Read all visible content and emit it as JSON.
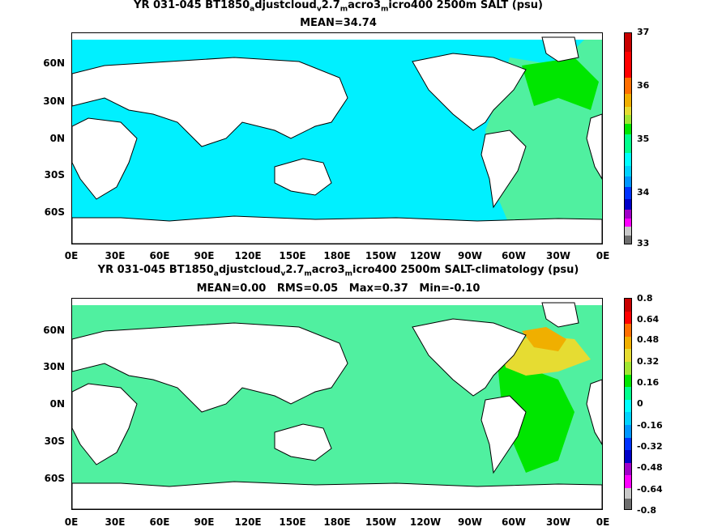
{
  "panels": [
    {
      "title_parts": [
        "YR 031-045 BT1850",
        "a",
        "djustcloud",
        "v",
        "2.7",
        "m",
        "acro3",
        "m",
        "icro400 2500m SALT (psu)"
      ],
      "subtitle": "MEAN=34.74",
      "colorbar_ticks": [
        "37",
        "36",
        "35",
        "34",
        "33"
      ]
    },
    {
      "title_parts": [
        "YR 031-045 BT1850",
        "a",
        "djustcloud",
        "v",
        "2.7",
        "m",
        "acro3",
        "m",
        "icro400 2500m SALT-climatology (psu)"
      ],
      "subtitle": "MEAN=0.00   RMS=0.05   Max=0.37   Min=-0.10",
      "colorbar_ticks": [
        "0.8",
        "0.64",
        "0.48",
        "0.32",
        "0.16",
        "0",
        "-0.16",
        "-0.32",
        "-0.48",
        "-0.64",
        "-0.8"
      ]
    }
  ],
  "lat_labels": [
    "60N",
    "30N",
    "0N",
    "30S",
    "60S"
  ],
  "lon_labels": [
    "0E",
    "30E",
    "60E",
    "90E",
    "120E",
    "150E",
    "180E",
    "150W",
    "120W",
    "90W",
    "60W",
    "30W",
    "0E"
  ],
  "chart_data": [
    {
      "type": "heatmap",
      "title": "YR 031-045 BT1850adjustcloudv2.7macro3micro400 2500m SALT (psu)",
      "subtitle": "MEAN=34.74",
      "variable": "SALT",
      "units": "psu",
      "depth": "2500m",
      "years": "031-045",
      "mean": 34.74,
      "colorbar": {
        "min": 33,
        "max": 37,
        "ticks": [
          33,
          34,
          35,
          36,
          37
        ]
      },
      "palette": [
        "#6e6e6e",
        "#c8c8c8",
        "#ff00ff",
        "#a000c8",
        "#0000c8",
        "#0032ff",
        "#0096ff",
        "#00d2ff",
        "#00ffff",
        "#00ff8c",
        "#00e600",
        "#a0e632",
        "#e6dc32",
        "#f0af00",
        "#ff6e00",
        "#ff0000",
        "#c80000"
      ],
      "ocean_colors": {
        "pacific_indian": "#00f0ff",
        "atlantic_tropics": "#50f0a0",
        "north_atlantic": "#00e600"
      }
    },
    {
      "type": "heatmap",
      "title": "YR 031-045 BT1850adjustcloudv2.7macro3micro400 2500m SALT-climatology (psu)",
      "subtitle": "MEAN=0.00 RMS=0.05 Max=0.37 Min=-0.10",
      "variable": "SALT-climatology",
      "units": "psu",
      "mean": 0.0,
      "rms": 0.05,
      "max": 0.37,
      "min": -0.1,
      "colorbar": {
        "min": -0.8,
        "max": 0.8,
        "ticks": [
          -0.8,
          -0.64,
          -0.48,
          -0.32,
          -0.16,
          0,
          0.16,
          0.32,
          0.48,
          0.64,
          0.8
        ]
      },
      "palette": [
        "#6e6e6e",
        "#c8c8c8",
        "#ff00ff",
        "#a000c8",
        "#0000c8",
        "#0032ff",
        "#0096ff",
        "#00d2ff",
        "#00ffff",
        "#00ff8c",
        "#00e600",
        "#a0e632",
        "#e6dc32",
        "#f0af00",
        "#ff6e00",
        "#ff0000",
        "#c80000"
      ],
      "ocean_colors": {
        "most": "#50f0a0",
        "north_atlantic": "#e6dc32",
        "subpolar_atlantic": "#f0af00"
      }
    }
  ]
}
